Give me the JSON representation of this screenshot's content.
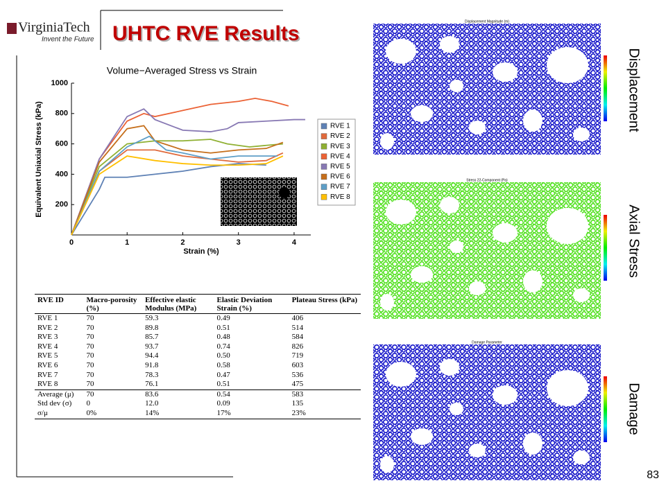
{
  "header": {
    "logo": "VirginiaTech",
    "tagline": "Invent the Future",
    "title": "UHTC RVE Results"
  },
  "chart_data": {
    "type": "line",
    "title": "Volume−Averaged Stress vs Strain",
    "x_label": "Strain (%)",
    "y_label": "Equivalent Uniaxial Stress (kPa)",
    "xlim": [
      0,
      4.3
    ],
    "xticks": [
      0,
      1,
      2,
      3,
      4
    ],
    "ylim": [
      0,
      1000
    ],
    "yticks": [
      200,
      400,
      600,
      800,
      1000
    ],
    "legend": "right",
    "series": [
      {
        "name": "RVE 1",
        "color": "#5e81b5",
        "x": [
          0,
          0.5,
          0.6,
          1,
          1.5,
          2,
          2.5,
          3,
          3.5
        ],
        "values": [
          0,
          300,
          380,
          380,
          400,
          420,
          450,
          470,
          460
        ]
      },
      {
        "name": "RVE 2",
        "color": "#e06a3c",
        "x": [
          0,
          0.5,
          1,
          1.5,
          2,
          2.5,
          3,
          3.5,
          3.8
        ],
        "values": [
          0,
          420,
          560,
          560,
          520,
          500,
          480,
          490,
          540
        ]
      },
      {
        "name": "RVE 3",
        "color": "#8fb032",
        "x": [
          0,
          0.5,
          1,
          1.5,
          2,
          2.5,
          2.8,
          3.2,
          3.5,
          3.8
        ],
        "values": [
          0,
          450,
          600,
          620,
          620,
          630,
          600,
          580,
          590,
          600
        ]
      },
      {
        "name": "RVE 4",
        "color": "#eb6235",
        "x": [
          0,
          0.5,
          1,
          1.3,
          1.5,
          2,
          2.5,
          3,
          3.3,
          3.6,
          3.9
        ],
        "values": [
          0,
          500,
          750,
          800,
          780,
          820,
          860,
          880,
          900,
          880,
          850
        ]
      },
      {
        "name": "RVE 5",
        "color": "#8778b3",
        "x": [
          0,
          0.5,
          1,
          1.3,
          1.5,
          2,
          2.5,
          2.8,
          3,
          3.5,
          4,
          4.2
        ],
        "values": [
          0,
          500,
          780,
          830,
          760,
          690,
          680,
          700,
          740,
          750,
          760,
          760
        ]
      },
      {
        "name": "RVE 6",
        "color": "#c56e1a",
        "x": [
          0,
          0.5,
          1,
          1.3,
          1.5,
          2,
          2.5,
          3,
          3.5,
          3.8
        ],
        "values": [
          0,
          480,
          700,
          720,
          620,
          560,
          540,
          560,
          570,
          610
        ]
      },
      {
        "name": "RVE 7",
        "color": "#5d9ec7",
        "x": [
          0,
          0.5,
          1,
          1.4,
          1.7,
          2,
          2.5,
          3,
          3.5,
          3.7
        ],
        "values": [
          0,
          420,
          580,
          650,
          560,
          540,
          500,
          520,
          520,
          520
        ]
      },
      {
        "name": "RVE 8",
        "color": "#ffbf00",
        "x": [
          0,
          0.5,
          1,
          1.5,
          2,
          2.5,
          3,
          3.5,
          3.8
        ],
        "values": [
          0,
          400,
          520,
          490,
          470,
          460,
          460,
          470,
          520
        ]
      }
    ]
  },
  "table": {
    "columns": [
      "RVE ID",
      "Macro-porosity (%)",
      "Effective elastic Modulus (MPa)",
      "Elastic Deviation Strain (%)",
      "Plateau Stress (kPa)"
    ],
    "rows": [
      [
        "RVE 1",
        "70",
        "59.3",
        "0.49",
        "406"
      ],
      [
        "RVE 2",
        "70",
        "89.8",
        "0.51",
        "514"
      ],
      [
        "RVE 3",
        "70",
        "85.7",
        "0.48",
        "584"
      ],
      [
        "RVE 4",
        "70",
        "93.7",
        "0.74",
        "826"
      ],
      [
        "RVE 5",
        "70",
        "94.4",
        "0.50",
        "719"
      ],
      [
        "RVE 6",
        "70",
        "91.8",
        "0.58",
        "603"
      ],
      [
        "RVE 7",
        "70",
        "78.3",
        "0.47",
        "536"
      ],
      [
        "RVE 8",
        "70",
        "76.1",
        "0.51",
        "475"
      ]
    ],
    "summary": [
      [
        "Average (μ)",
        "70",
        "83.6",
        "0.54",
        "583"
      ],
      [
        "Std dev (σ)",
        "0",
        "12.0",
        "0.09",
        "135"
      ],
      [
        "σ/μ",
        "0%",
        "14%",
        "17%",
        "23%"
      ]
    ]
  },
  "images": [
    {
      "title": "Displacement Magnitude (m)",
      "label": "Displacement"
    },
    {
      "title": "Stress 22-Component (Pa)",
      "label": "Axial  Stress"
    },
    {
      "title": "Damage Parameter",
      "label": "Damage"
    }
  ],
  "page_number": "83"
}
